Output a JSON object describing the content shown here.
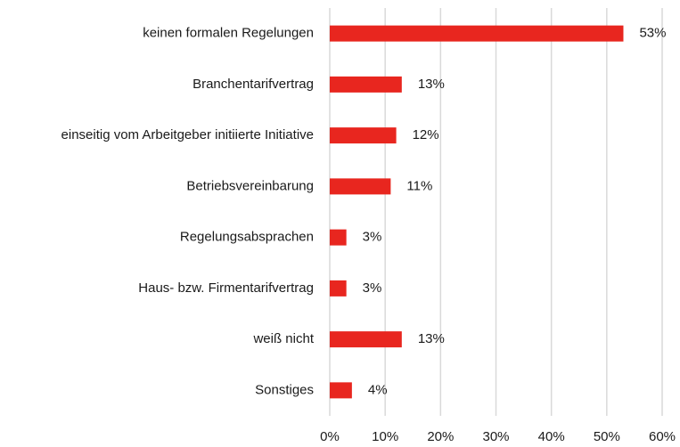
{
  "chart_data": {
    "type": "bar",
    "orientation": "horizontal",
    "categories": [
      "keinen formalen Regelungen",
      "Branchentarifvertrag",
      "einseitig vom Arbeitgeber initiierte Initiative",
      "Betriebsvereinbarung",
      "Regelungsabsprachen",
      "Haus- bzw. Firmentarifvertrag",
      "weiß nicht",
      "Sonstiges"
    ],
    "values": [
      53,
      13,
      12,
      11,
      3,
      3,
      13,
      4
    ],
    "value_labels": [
      "53%",
      "13%",
      "12%",
      "11%",
      "3%",
      "3%",
      "13%",
      "4%"
    ],
    "color": "#e8261f",
    "xlim": [
      0,
      60
    ],
    "xticks": [
      {
        "value": 0,
        "label": "0%"
      },
      {
        "value": 10,
        "label": "10%"
      },
      {
        "value": 20,
        "label": "20%"
      },
      {
        "value": 30,
        "label": "30%"
      },
      {
        "value": 40,
        "label": "40%"
      },
      {
        "value": 50,
        "label": "50%"
      },
      {
        "value": 60,
        "label": "60%"
      }
    ],
    "grid": true
  }
}
